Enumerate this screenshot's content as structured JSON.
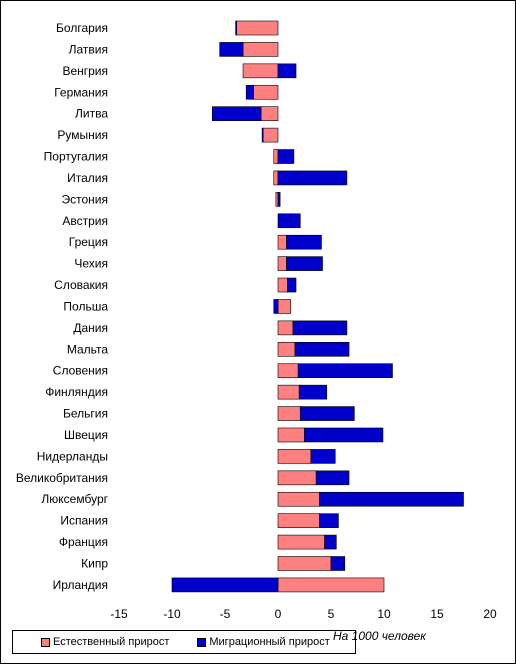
{
  "chart_data": {
    "type": "bar",
    "orientation": "horizontal",
    "stacked": true,
    "categories": [
      "Болгария",
      "Латвия",
      "Венгрия",
      "Германия",
      "Литва",
      "Румыния",
      "Португалия",
      "Италия",
      "Эстония",
      "Австрия",
      "Греция",
      "Чехия",
      "Словакия",
      "Польша",
      "Дания",
      "Мальта",
      "Словения",
      "Финляндия",
      "Бельгия",
      "Швеция",
      "Нидерланды",
      "Великобритания",
      "Люксембург",
      "Испания",
      "Франция",
      "Кипр",
      "Ирландия"
    ],
    "series": [
      {
        "name": "Естественный прирост",
        "color": "#ff8080",
        "values": [
          -3.9,
          -3.3,
          -3.3,
          -2.3,
          -1.6,
          -1.4,
          -0.4,
          -0.4,
          -0.2,
          0.0,
          0.8,
          0.8,
          0.9,
          1.2,
          1.4,
          1.6,
          1.9,
          2.0,
          2.1,
          2.5,
          3.1,
          3.6,
          3.9,
          3.9,
          4.4,
          5.0,
          10.0
        ]
      },
      {
        "name": "Миграционный прирост",
        "color": "#0000cc",
        "values": [
          -0.1,
          -2.2,
          1.7,
          -0.7,
          -4.6,
          -0.1,
          1.5,
          6.5,
          0.2,
          2.1,
          3.3,
          3.4,
          0.8,
          -0.4,
          5.1,
          5.1,
          8.9,
          2.6,
          5.1,
          7.4,
          2.3,
          3.1,
          13.6,
          1.8,
          1.1,
          1.3,
          -10.0
        ]
      }
    ],
    "xlim": [
      -15,
      20
    ],
    "xticks": [
      "-15",
      "-10",
      "-5",
      "0",
      "5",
      "10",
      "15",
      "20"
    ],
    "xlabel": "",
    "ylabel": "",
    "grid": false,
    "legend_position": "bottom-left",
    "unit_note": "На 1000 человек"
  }
}
